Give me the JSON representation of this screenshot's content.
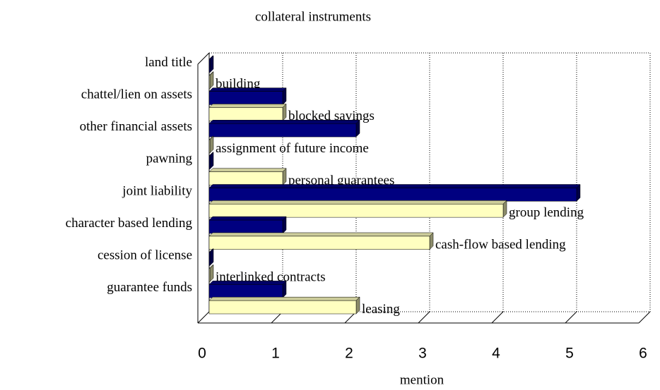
{
  "chart_data": {
    "type": "bar3d",
    "orientation": "horizontal",
    "title": "collateral instruments",
    "x_label": "mention",
    "categories": [
      "land title",
      "building",
      "chattel/lien on assets",
      "blocked savings",
      "other financial assets",
      "assignment of future income",
      "pawning",
      "personal guarantees",
      "joint liability",
      "group lending",
      "character based lending",
      "cash-flow based lending",
      "cession of license",
      "interlinked contracts",
      "guarantee funds",
      "leasing"
    ],
    "values": [
      0,
      0,
      1,
      1,
      2,
      0,
      0,
      1,
      5,
      4,
      1,
      3,
      0,
      0,
      1,
      2
    ],
    "bar_colors": [
      "#000080",
      "#ffffc0"
    ],
    "xlim": [
      0,
      6
    ],
    "xticks": [
      0,
      1,
      2,
      3,
      4,
      5,
      6
    ],
    "grid": true
  }
}
